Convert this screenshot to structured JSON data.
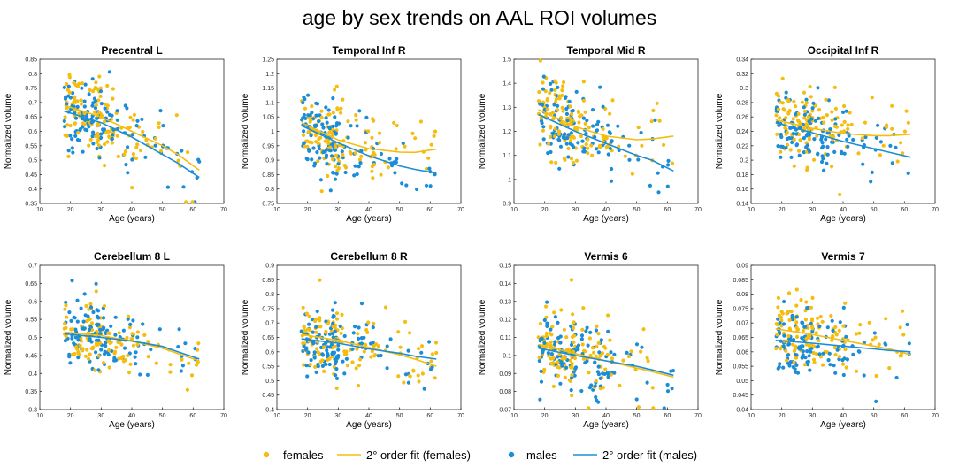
{
  "figure_title": "age by sex trends on AAL ROI volumes",
  "colors": {
    "females": "#F5BD0F",
    "males": "#1B8DD8"
  },
  "legend": {
    "females": "females",
    "fit_females": "2° order fit (females)",
    "males": "males",
    "fit_males": "2° order fit (males)"
  },
  "chart_data": [
    {
      "type": "scatter",
      "title": "Precentral L",
      "xlabel": "Age (years)",
      "ylabel": "Normalized volume",
      "xlim": [
        10,
        70
      ],
      "ylim": [
        0.35,
        0.85
      ],
      "xticks": [
        "10",
        "20",
        "30",
        "40",
        "50",
        "60",
        "70"
      ],
      "yticks": [
        "0.35",
        "0.4",
        "0.45",
        "0.5",
        "0.55",
        "0.6",
        "0.65",
        "0.7",
        "0.75",
        "0.8",
        "0.85"
      ],
      "fit_females": [
        [
          18,
          0.69
        ],
        [
          30,
          0.65
        ],
        [
          40,
          0.6
        ],
        [
          50,
          0.55
        ],
        [
          55,
          0.52
        ],
        [
          62,
          0.465
        ]
      ],
      "fit_males": [
        [
          18,
          0.67
        ],
        [
          30,
          0.63
        ],
        [
          40,
          0.58
        ],
        [
          50,
          0.52
        ],
        [
          55,
          0.49
        ],
        [
          62,
          0.44
        ]
      ],
      "center_f": 0.66,
      "center_m": 0.64,
      "spread": 0.075
    },
    {
      "type": "scatter",
      "title": "Temporal Inf R",
      "xlabel": "Age (years)",
      "ylabel": "Normalized volume",
      "xlim": [
        10,
        70
      ],
      "ylim": [
        0.75,
        1.25
      ],
      "xticks": [
        "10",
        "20",
        "30",
        "40",
        "50",
        "60",
        "70"
      ],
      "yticks": [
        "0.75",
        "0.8",
        "0.85",
        "0.9",
        "0.95",
        "1",
        "1.05",
        "1.1",
        "1.15",
        "1.2",
        "1.25"
      ],
      "fit_females": [
        [
          18,
          1.03
        ],
        [
          30,
          0.97
        ],
        [
          40,
          0.94
        ],
        [
          50,
          0.928
        ],
        [
          55,
          0.927
        ],
        [
          62,
          0.938
        ]
      ],
      "fit_males": [
        [
          18,
          1.02
        ],
        [
          30,
          0.96
        ],
        [
          40,
          0.915
        ],
        [
          50,
          0.88
        ],
        [
          55,
          0.868
        ],
        [
          62,
          0.855
        ]
      ],
      "center_f": 0.97,
      "center_m": 0.95,
      "spread": 0.08
    },
    {
      "type": "scatter",
      "title": "Temporal Mid R",
      "xlabel": "Age (years)",
      "ylabel": "Normalized volume",
      "xlim": [
        10,
        70
      ],
      "ylim": [
        0.9,
        1.5
      ],
      "xticks": [
        "10",
        "20",
        "30",
        "40",
        "50",
        "60",
        "70"
      ],
      "yticks": [
        "0.9",
        "1",
        "1.1",
        "1.2",
        "1.3",
        "1.4",
        "1.5"
      ],
      "fit_females": [
        [
          18,
          1.29
        ],
        [
          30,
          1.22
        ],
        [
          40,
          1.18
        ],
        [
          50,
          1.165
        ],
        [
          55,
          1.168
        ],
        [
          62,
          1.18
        ]
      ],
      "fit_males": [
        [
          18,
          1.27
        ],
        [
          30,
          1.2
        ],
        [
          40,
          1.15
        ],
        [
          50,
          1.1
        ],
        [
          55,
          1.08
        ],
        [
          62,
          1.035
        ]
      ],
      "center_f": 1.22,
      "center_m": 1.2,
      "spread": 0.1
    },
    {
      "type": "scatter",
      "title": "Occipital Inf R",
      "xlabel": "Age (years)",
      "ylabel": "Normalized volume",
      "xlim": [
        10,
        70
      ],
      "ylim": [
        0.14,
        0.34
      ],
      "xticks": [
        "10",
        "20",
        "30",
        "40",
        "50",
        "60",
        "70"
      ],
      "yticks": [
        "0.14",
        "0.16",
        "0.18",
        "0.2",
        "0.22",
        "0.24",
        "0.26",
        "0.28",
        "0.3",
        "0.32",
        "0.34"
      ],
      "fit_females": [
        [
          18,
          0.256
        ],
        [
          30,
          0.244
        ],
        [
          40,
          0.237
        ],
        [
          50,
          0.234
        ],
        [
          55,
          0.234
        ],
        [
          62,
          0.236
        ]
      ],
      "fit_males": [
        [
          18,
          0.252
        ],
        [
          30,
          0.238
        ],
        [
          40,
          0.226
        ],
        [
          50,
          0.216
        ],
        [
          55,
          0.211
        ],
        [
          62,
          0.204
        ]
      ],
      "center_f": 0.245,
      "center_m": 0.24,
      "spread": 0.03
    },
    {
      "type": "scatter",
      "title": "Cerebellum 8 L",
      "xlabel": "Age (years)",
      "ylabel": "Normalized volume",
      "xlim": [
        10,
        70
      ],
      "ylim": [
        0.3,
        0.7
      ],
      "xticks": [
        "10",
        "20",
        "30",
        "40",
        "50",
        "60",
        "70"
      ],
      "yticks": [
        "0.3",
        "0.35",
        "0.4",
        "0.45",
        "0.5",
        "0.55",
        "0.6",
        "0.65",
        "0.7"
      ],
      "fit_females": [
        [
          18,
          0.515
        ],
        [
          30,
          0.505
        ],
        [
          40,
          0.49
        ],
        [
          50,
          0.47
        ],
        [
          55,
          0.455
        ],
        [
          62,
          0.435
        ]
      ],
      "fit_males": [
        [
          18,
          0.51
        ],
        [
          30,
          0.5
        ],
        [
          40,
          0.49
        ],
        [
          50,
          0.475
        ],
        [
          55,
          0.46
        ],
        [
          62,
          0.44
        ]
      ],
      "center_f": 0.51,
      "center_m": 0.5,
      "spread": 0.055
    },
    {
      "type": "scatter",
      "title": "Cerebellum 8 R",
      "xlabel": "Age (years)",
      "ylabel": "Normalized volume",
      "xlim": [
        10,
        70
      ],
      "ylim": [
        0.4,
        0.9
      ],
      "xticks": [
        "10",
        "20",
        "30",
        "40",
        "50",
        "60",
        "70"
      ],
      "yticks": [
        "0.4",
        "0.45",
        "0.5",
        "0.55",
        "0.6",
        "0.65",
        "0.7",
        "0.75",
        "0.8",
        "0.85",
        "0.9"
      ],
      "fit_females": [
        [
          18,
          0.66
        ],
        [
          30,
          0.64
        ],
        [
          40,
          0.615
        ],
        [
          50,
          0.59
        ],
        [
          55,
          0.575
        ],
        [
          62,
          0.55
        ]
      ],
      "fit_males": [
        [
          18,
          0.645
        ],
        [
          30,
          0.63
        ],
        [
          40,
          0.61
        ],
        [
          50,
          0.595
        ],
        [
          55,
          0.585
        ],
        [
          62,
          0.575
        ]
      ],
      "center_f": 0.65,
      "center_m": 0.63,
      "spread": 0.065
    },
    {
      "type": "scatter",
      "title": "Vermis 6",
      "xlabel": "Age (years)",
      "ylabel": "Normalized volume",
      "xlim": [
        10,
        70
      ],
      "ylim": [
        0.07,
        0.15
      ],
      "xticks": [
        "10",
        "20",
        "30",
        "40",
        "50",
        "60",
        "70"
      ],
      "yticks": [
        "0.07",
        "0.08",
        "0.09",
        "0.1",
        "0.11",
        "0.12",
        "0.13",
        "0.14",
        "0.15"
      ],
      "fit_females": [
        [
          18,
          0.106
        ],
        [
          30,
          0.101
        ],
        [
          40,
          0.097
        ],
        [
          50,
          0.093
        ],
        [
          55,
          0.091
        ],
        [
          62,
          0.088
        ]
      ],
      "fit_males": [
        [
          18,
          0.104
        ],
        [
          30,
          0.1
        ],
        [
          40,
          0.097
        ],
        [
          50,
          0.094
        ],
        [
          55,
          0.092
        ],
        [
          62,
          0.089
        ]
      ],
      "center_f": 0.103,
      "center_m": 0.1,
      "spread": 0.012
    },
    {
      "type": "scatter",
      "title": "Vermis 7",
      "xlabel": "Age (years)",
      "ylabel": "Normalized volume",
      "xlim": [
        10,
        70
      ],
      "ylim": [
        0.04,
        0.09
      ],
      "xticks": [
        "10",
        "20",
        "30",
        "40",
        "50",
        "60",
        "70"
      ],
      "yticks": [
        "0.04",
        "0.045",
        "0.05",
        "0.055",
        "0.06",
        "0.065",
        "0.07",
        "0.075",
        "0.08",
        "0.085",
        "0.09"
      ],
      "fit_females": [
        [
          18,
          0.068
        ],
        [
          30,
          0.066
        ],
        [
          40,
          0.064
        ],
        [
          50,
          0.062
        ],
        [
          55,
          0.061
        ],
        [
          62,
          0.059
        ]
      ],
      "fit_males": [
        [
          18,
          0.064
        ],
        [
          30,
          0.063
        ],
        [
          40,
          0.062
        ],
        [
          50,
          0.061
        ],
        [
          55,
          0.0605
        ],
        [
          62,
          0.06
        ]
      ],
      "center_f": 0.066,
      "center_m": 0.063,
      "spread": 0.007
    }
  ]
}
